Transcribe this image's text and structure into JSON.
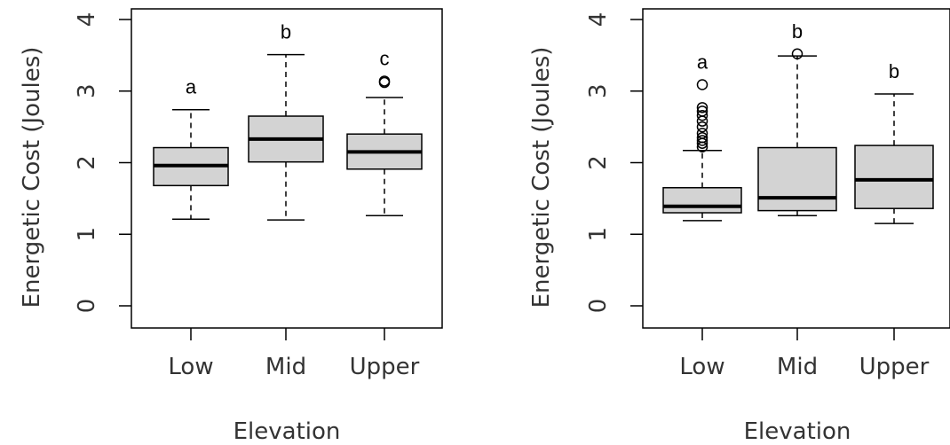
{
  "chart_data": [
    {
      "type": "boxplot",
      "xlabel": "Elevation",
      "ylabel": "Energetic Cost (Joules)",
      "ylim": [
        0,
        4
      ],
      "yticks": [
        0,
        1,
        2,
        3,
        4
      ],
      "categories": [
        "Low",
        "Mid",
        "Upper"
      ],
      "boxes": [
        {
          "category": "Low",
          "whisker_low": 1.21,
          "q1": 1.68,
          "median": 1.96,
          "q3": 2.21,
          "whisker_high": 2.74,
          "outliers": [],
          "letter": "a"
        },
        {
          "category": "Mid",
          "whisker_low": 1.2,
          "q1": 2.01,
          "median": 2.33,
          "q3": 2.65,
          "whisker_high": 3.51,
          "outliers": [],
          "letter": "b"
        },
        {
          "category": "Upper",
          "whisker_low": 1.26,
          "q1": 1.91,
          "median": 2.15,
          "q3": 2.4,
          "whisker_high": 2.91,
          "outliers": [
            3.12,
            3.14
          ],
          "letter": "c"
        }
      ]
    },
    {
      "type": "boxplot",
      "xlabel": "Elevation",
      "ylabel": "Energetic Cost (Joules)",
      "ylim": [
        0,
        4
      ],
      "yticks": [
        0,
        1,
        2,
        3,
        4
      ],
      "categories": [
        "Low",
        "Mid",
        "Upper"
      ],
      "boxes": [
        {
          "category": "Low",
          "whisker_low": 1.19,
          "q1": 1.3,
          "median": 1.39,
          "q3": 1.65,
          "whisker_high": 2.17,
          "outliers": [
            2.22,
            2.27,
            2.31,
            2.35,
            2.41,
            2.5,
            2.58,
            2.66,
            2.72,
            2.77,
            3.09
          ],
          "letter": "a"
        },
        {
          "category": "Mid",
          "whisker_low": 1.26,
          "q1": 1.33,
          "median": 1.51,
          "q3": 2.21,
          "whisker_high": 3.49,
          "outliers": [
            3.52
          ],
          "letter": "b"
        },
        {
          "category": "Upper",
          "whisker_low": 1.15,
          "q1": 1.36,
          "median": 1.76,
          "q3": 2.24,
          "whisker_high": 2.96,
          "outliers": [],
          "letter": "b"
        }
      ]
    }
  ]
}
